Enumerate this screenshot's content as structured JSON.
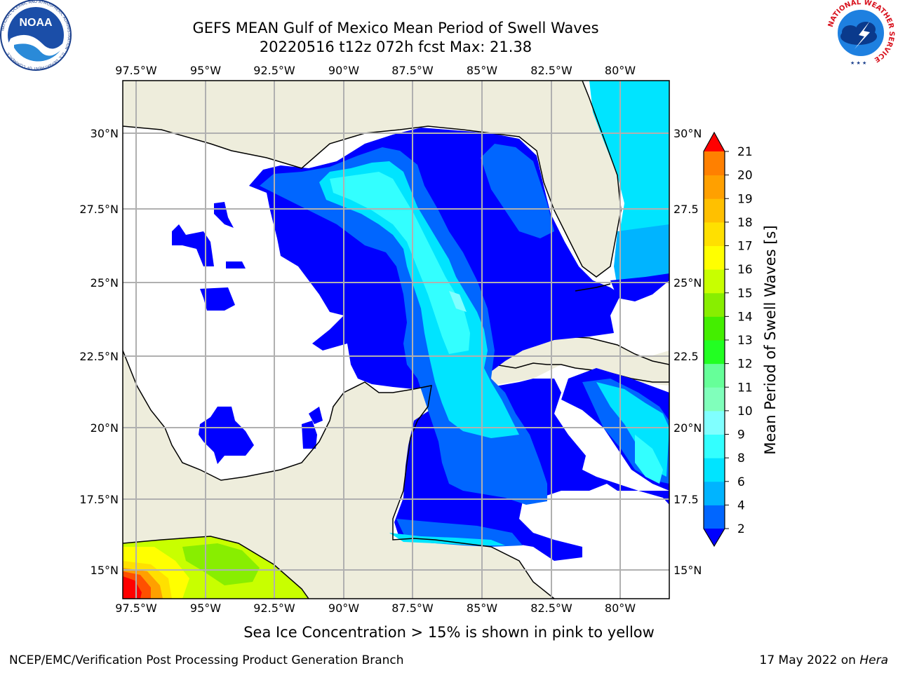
{
  "title_line1": "GEFS MEAN Gulf of Mexico Mean Period of Swell Waves",
  "title_line2": "20220516 t12z 072h fcst   Max: 21.38",
  "logos": {
    "left": {
      "text": "NOAA",
      "ring_text": "NATIONAL OCEANIC AND ATMOSPHERIC ADMINISTRATION · U.S. DEPARTMENT OF COMMERCE"
    },
    "right": {
      "ring_text": "NATIONAL WEATHER SERVICE"
    }
  },
  "map": {
    "lon_ticks": [
      "97.5°W",
      "95°W",
      "92.5°W",
      "90°W",
      "87.5°W",
      "85°W",
      "82.5°W",
      "80°W"
    ],
    "lat_ticks_left": [
      "30°N",
      "27.5°N",
      "25°N",
      "22.5°N",
      "20°N",
      "17.5°N",
      "15°N"
    ],
    "lat_ticks_right": [
      "30°N",
      "27.5",
      "25°N",
      "22.5",
      "20°N",
      "17.5",
      "15°N"
    ],
    "colors": {
      "land": "#eeeddc",
      "ocean_nodata": "#ffffff",
      "grid": "#b0b0b0",
      "coast": "#000000"
    }
  },
  "colorbar": {
    "label": "Mean Period of Swell Waves [s]",
    "ticks": [
      "2",
      "4",
      "6",
      "8",
      "9",
      "10",
      "11",
      "12",
      "13",
      "14",
      "15",
      "16",
      "17",
      "18",
      "19",
      "20",
      "21"
    ],
    "colors": [
      "#0000ff",
      "#0066ff",
      "#00b4ff",
      "#00e4ff",
      "#33ffff",
      "#80ffff",
      "#80ffbb",
      "#66ff99",
      "#22ff22",
      "#44ee00",
      "#88ee00",
      "#c8ff00",
      "#ffff00",
      "#ffe000",
      "#ffc000",
      "#ffa000",
      "#ff8000",
      "#ff5000",
      "#ff2000",
      "#ff0000"
    ]
  },
  "subcaption": "Sea Ice Concentration > 15% is shown in pink to yellow",
  "footer": {
    "left": "NCEP/EMC/Verification Post Processing Product Generation Branch",
    "date": "17 May 2022 on",
    "machine": "Hera"
  }
}
